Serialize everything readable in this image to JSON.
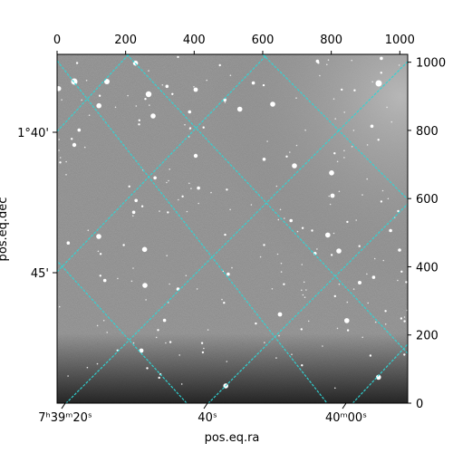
{
  "chart_data": {
    "type": "image",
    "colormap": "gray",
    "grid_color": "#2fd6d6",
    "xlabel": "pos.eq.ra",
    "ylabel": "pos.eq.dec",
    "pixel_axes": {
      "x_ticks": [
        0,
        200,
        400,
        600,
        800,
        1000
      ],
      "y_ticks": [
        0,
        200,
        400,
        600,
        800,
        1000
      ],
      "xlim": [
        0,
        1023
      ],
      "ylim": [
        0,
        1023
      ]
    },
    "world_axes": {
      "ra_ticks": [
        "7h39m20s",
        "40s",
        "40m00s"
      ],
      "dec_ticks": [
        "1°40'",
        "45'"
      ]
    }
  }
}
